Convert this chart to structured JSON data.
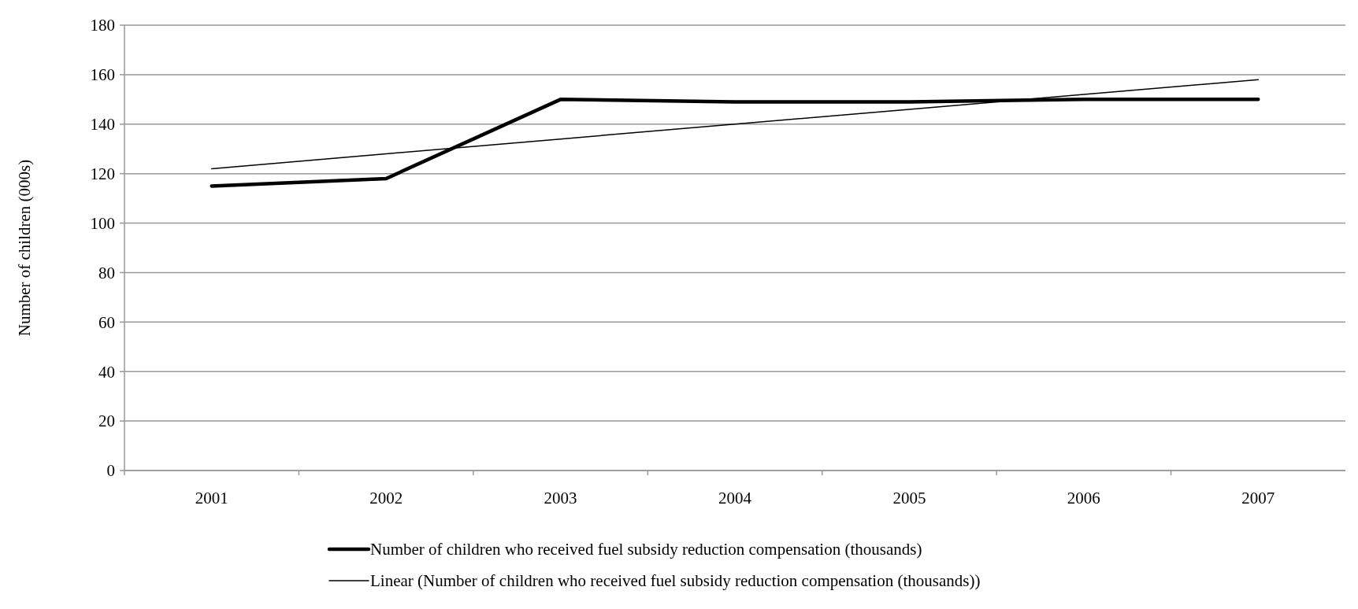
{
  "chart_data": {
    "type": "line",
    "ylabel": "Number of children (000s)",
    "categories": [
      "2001",
      "2002",
      "2003",
      "2004",
      "2005",
      "2006",
      "2007"
    ],
    "series": [
      {
        "name": "Number of children who received fuel subsidy reduction compensation (thousands)",
        "color": "#000000",
        "values": [
          115,
          118,
          150,
          149,
          149,
          150,
          150
        ]
      },
      {
        "name": "Linear (Number of children who received fuel subsidy reduction compensation (thousands))",
        "color": "#000000",
        "values": [
          122,
          128,
          134,
          140,
          146,
          152,
          158
        ]
      }
    ],
    "ylim": [
      0,
      180
    ],
    "yticks": [
      0,
      20,
      40,
      60,
      80,
      100,
      120,
      140,
      160,
      180
    ],
    "grid": "y",
    "legend": "bottom",
    "marker": "none",
    "line_style": "solid"
  }
}
